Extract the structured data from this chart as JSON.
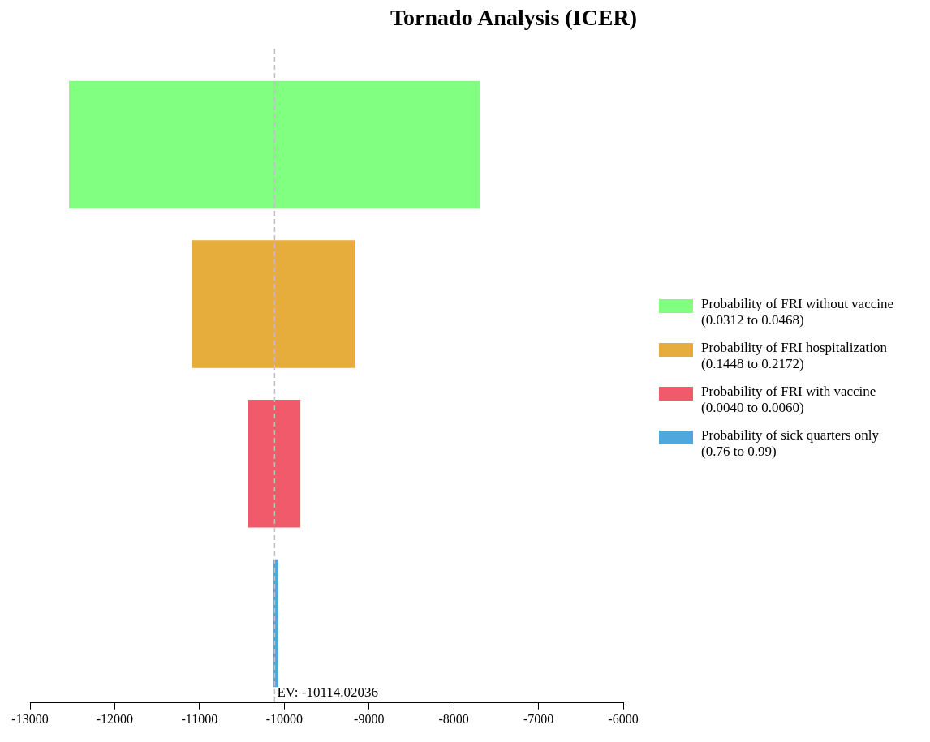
{
  "chart_data": {
    "type": "bar",
    "title": "Tornado Analysis (ICER)",
    "orientation": "horizontal",
    "categories": [
      null,
      null,
      null,
      null
    ],
    "series": [
      {
        "name": "Probability of FRI without vaccine (0.0312 to 0.0468)",
        "color": "#80ff80",
        "base": [
          -12540,
          null,
          null,
          null
        ],
        "values": [
          4850,
          null,
          null,
          null
        ]
      },
      {
        "name": "Probability of FRI hospitalization (0.1448 to 0.2172)",
        "color": "#e6ac3c",
        "base": [
          null,
          -11090,
          null,
          null
        ],
        "values": [
          null,
          1930,
          null,
          null
        ]
      },
      {
        "name": "Probability of FRI with vaccine (0.0040 to 0.0060)",
        "color": "#f05a6a",
        "base": [
          null,
          null,
          -10430,
          null
        ],
        "values": [
          null,
          null,
          620,
          null
        ]
      },
      {
        "name": "Probability of sick quarters only (0.76 to 0.99)",
        "color": "#4ea8dc",
        "base": [
          null,
          null,
          null,
          -10130
        ],
        "values": [
          null,
          null,
          null,
          60
        ]
      }
    ],
    "xlim": [
      -13000,
      -6000
    ],
    "xticks": [
      -13000,
      -12000,
      -11000,
      -10000,
      -9000,
      -8000,
      -7000,
      -6000
    ],
    "ref_lines": [
      {
        "axis": "x",
        "value": -10114.02036,
        "label": "EV: -10114.02036",
        "color": "#c0c0c0",
        "line_style": "dashed"
      }
    ],
    "grid": false,
    "legend": "right"
  }
}
